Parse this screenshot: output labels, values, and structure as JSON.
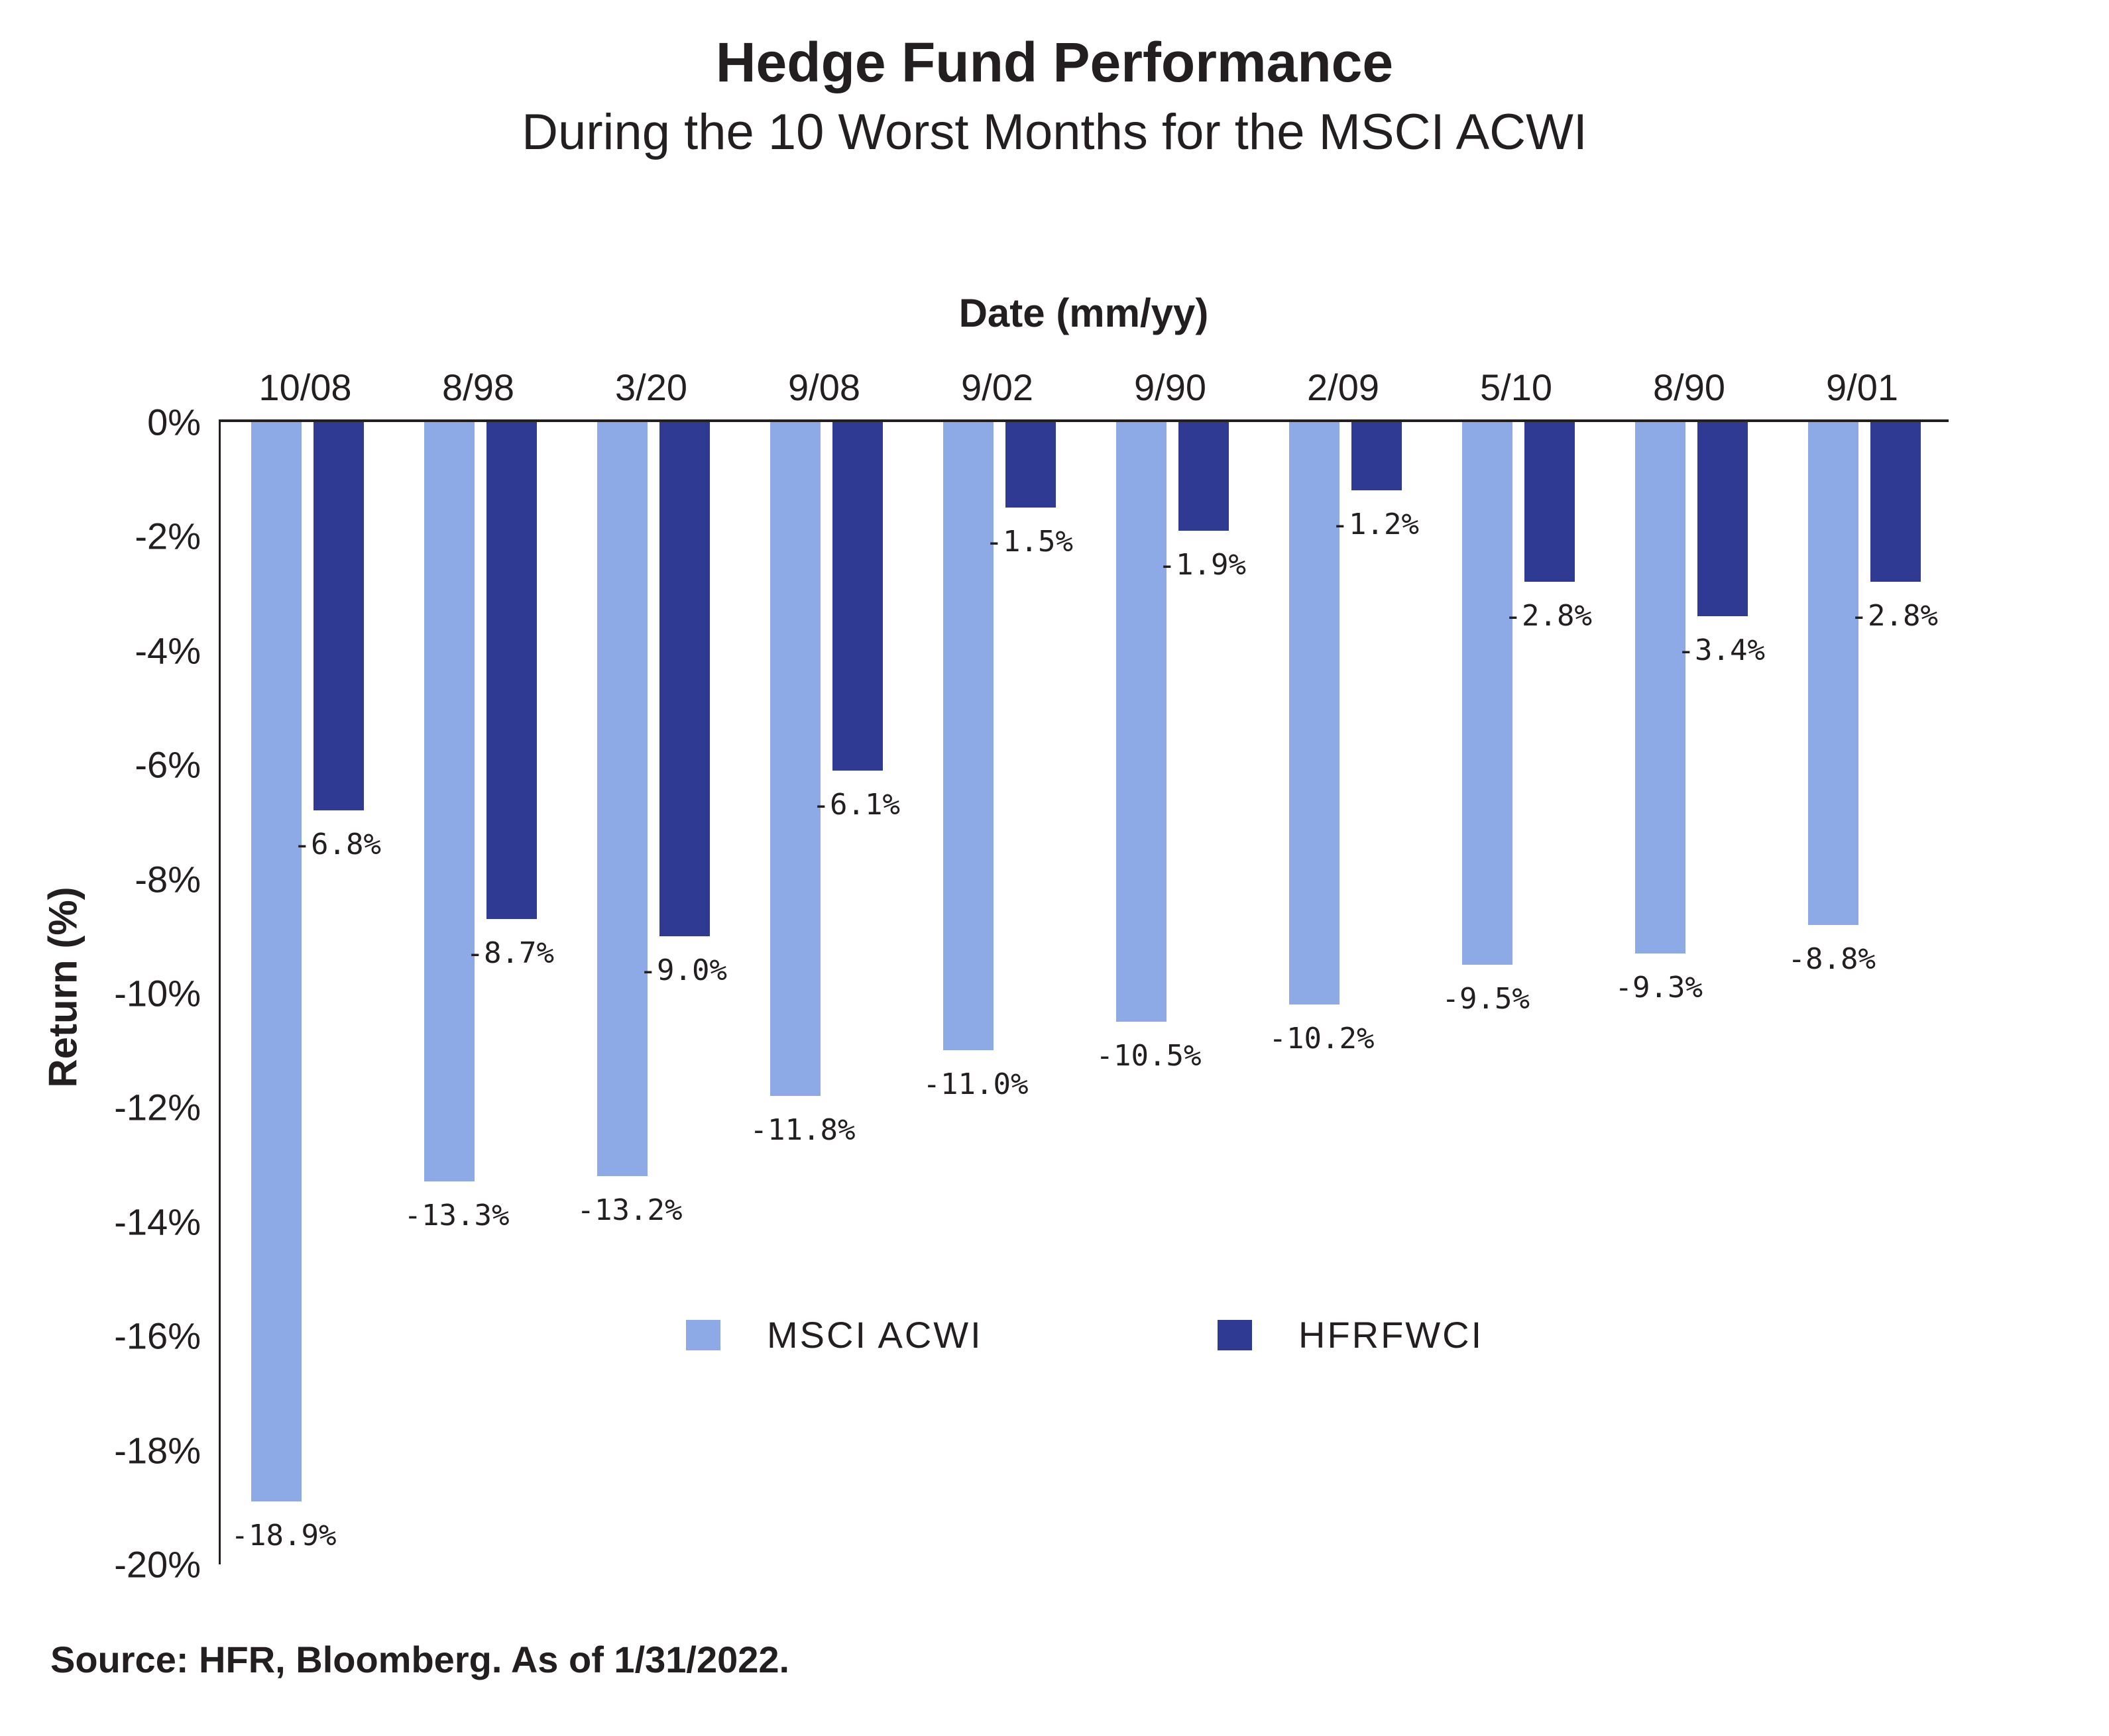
{
  "title": "Hedge Fund Performance",
  "subtitle": "During the 10 Worst Months for the MSCI ACWI",
  "source": "Source: HFR, Bloomberg. As of 1/31/2022.",
  "colors": {
    "msci_bar": "#8DAAE6",
    "hfrfwci_bar": "#2F3B93",
    "axis": "#231F20",
    "text": "#231F20",
    "background": "#FFFFFF"
  },
  "chart_data": {
    "type": "bar",
    "title": "Hedge Fund Performance",
    "subtitle": "During the 10 Worst Months for the MSCI ACWI",
    "xlabel": "Date (mm/yy)",
    "ylabel": "Return (%)",
    "ylim": [
      -20,
      0
    ],
    "ytick_labels": [
      "0%",
      "-2%",
      "-4%",
      "-6%",
      "-8%",
      "-10%",
      "-12%",
      "-14%",
      "-16%",
      "-18%",
      "-20%"
    ],
    "grid": false,
    "legend_position": "inside-bottom-center",
    "categories": [
      "10/08",
      "8/98",
      "3/20",
      "9/08",
      "9/02",
      "9/90",
      "2/09",
      "5/10",
      "8/90",
      "9/01"
    ],
    "series": [
      {
        "name": "MSCI ACWI",
        "color": "#8DAAE6",
        "values": [
          -18.9,
          -13.3,
          -13.2,
          -11.8,
          -11.0,
          -10.5,
          -10.2,
          -9.5,
          -9.3,
          -8.8
        ],
        "labels": [
          "-18.9%",
          "-13.3%",
          "-13.2%",
          "-11.8%",
          "-11.0%",
          "-10.5%",
          "-10.2%",
          "-9.5%",
          "-9.3%",
          "-8.8%"
        ]
      },
      {
        "name": "HFRFWCI",
        "color": "#2F3B93",
        "values": [
          -6.8,
          -8.7,
          -9.0,
          -6.1,
          -1.5,
          -1.9,
          -1.2,
          -2.8,
          -3.4,
          -2.8
        ],
        "labels": [
          "-6.8%",
          "-8.7%",
          "-9.0%",
          "-6.1%",
          "-1.5%",
          "-1.9%",
          "-1.2%",
          "-2.8%",
          "-3.4%",
          "-2.8%"
        ]
      }
    ]
  }
}
